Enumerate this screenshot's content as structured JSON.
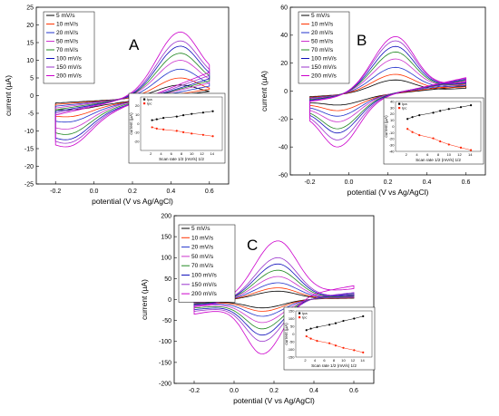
{
  "chart_data": [
    {
      "type": "line",
      "panel_label": "A",
      "xlabel": "potential (V vs Ag/AgCl)",
      "ylabel": "current (µA)",
      "xlim": [
        -0.3,
        0.7
      ],
      "ylim": [
        -25,
        25
      ],
      "xticks": [
        -0.2,
        0.0,
        0.2,
        0.4,
        0.6
      ],
      "yticks": [
        -25,
        -20,
        -15,
        -10,
        -5,
        0,
        5,
        10,
        15,
        20,
        25
      ],
      "legend_position": "top-left",
      "peak_potentials": {
        "anodic_V": 0.45,
        "cathodic_V": -0.15
      },
      "series": [
        {
          "name": "5 mV/s",
          "color": "#000000",
          "anodic_peak": 3,
          "cathodic_peak": -4,
          "end_anodic": 2,
          "start_cathodic": -4.2
        },
        {
          "name": "10 mV/s",
          "color": "#ff3300",
          "anodic_peak": 5,
          "cathodic_peak": -6,
          "end_anodic": 3,
          "start_cathodic": -5
        },
        {
          "name": "20 mV/s",
          "color": "#2233cc",
          "anodic_peak": 7.5,
          "cathodic_peak": -7.5,
          "end_anodic": 4.5,
          "start_cathodic": -6
        },
        {
          "name": "50 mV/s",
          "color": "#cc33cc",
          "anodic_peak": 10,
          "cathodic_peak": -9.5,
          "end_anodic": 6,
          "start_cathodic": -7
        },
        {
          "name": "70 mV/s",
          "color": "#228822",
          "anodic_peak": 12,
          "cathodic_peak": -11,
          "end_anodic": 7,
          "start_cathodic": -8
        },
        {
          "name": "100 mV/s",
          "color": "#1111bb",
          "anodic_peak": 14,
          "cathodic_peak": -12.5,
          "end_anodic": 8,
          "start_cathodic": -9
        },
        {
          "name": "150 mV/s",
          "color": "#9933cc",
          "anodic_peak": 15.5,
          "cathodic_peak": -13.5,
          "end_anodic": 9.5,
          "start_cathodic": -10
        },
        {
          "name": "200 mV/s",
          "color": "#cc00cc",
          "anodic_peak": 18,
          "cathodic_peak": -14.5,
          "end_anodic": 11,
          "start_cathodic": -11
        }
      ],
      "inset": {
        "type": "scatter",
        "xlabel": "Scan rate 1/2 (mV/s) 1/2",
        "ylabel": "current (µA)",
        "xlim": [
          0,
          16
        ],
        "xticks": [
          2,
          4,
          6,
          8,
          10,
          12,
          14
        ],
        "ylim": [
          -30,
          30
        ],
        "yticks": [
          -20,
          -10,
          0,
          10,
          20
        ],
        "legend": [
          "Ipa",
          "Ipc"
        ],
        "x": [
          2.24,
          3.16,
          4.47,
          7.07,
          8.37,
          10.0,
          12.25,
          14.14
        ],
        "series": [
          {
            "name": "Ipa",
            "color": "#000000",
            "values": [
              4,
              5,
              6.5,
              8,
              9.5,
              11,
              12.5,
              14
            ]
          },
          {
            "name": "Ipc",
            "color": "#ff2200",
            "values": [
              -4,
              -5.5,
              -6.5,
              -8,
              -9.5,
              -11,
              -12.5,
              -14
            ]
          }
        ]
      }
    },
    {
      "type": "line",
      "panel_label": "B",
      "xlabel": "potential (V vs Ag/AgCl)",
      "ylabel": "current (µA)",
      "xlim": [
        -0.3,
        0.7
      ],
      "ylim": [
        -60,
        60
      ],
      "xticks": [
        -0.2,
        0.0,
        0.2,
        0.4,
        0.6
      ],
      "yticks": [
        -60,
        -40,
        -20,
        0,
        20,
        40,
        60
      ],
      "legend_position": "top-left",
      "peak_potentials": {
        "anodic_V": 0.24,
        "cathodic_V": -0.06
      },
      "series": [
        {
          "name": "5 mV/s",
          "color": "#000000",
          "anodic_peak": 8,
          "cathodic_peak": -10,
          "end_anodic": 6,
          "start_cathodic": -8
        },
        {
          "name": "10 mV/s",
          "color": "#ff3300",
          "anodic_peak": 12,
          "cathodic_peak": -14,
          "end_anodic": 8,
          "start_cathodic": -9
        },
        {
          "name": "20 mV/s",
          "color": "#2233cc",
          "anodic_peak": 17,
          "cathodic_peak": -18,
          "end_anodic": 10,
          "start_cathodic": -10
        },
        {
          "name": "50 mV/s",
          "color": "#cc33cc",
          "anodic_peak": 23,
          "cathodic_peak": -22,
          "end_anodic": 12,
          "start_cathodic": -11
        },
        {
          "name": "70 mV/s",
          "color": "#228822",
          "anodic_peak": 28,
          "cathodic_peak": -27,
          "end_anodic": 13,
          "start_cathodic": -12
        },
        {
          "name": "100 mV/s",
          "color": "#1111bb",
          "anodic_peak": 32,
          "cathodic_peak": -30,
          "end_anodic": 14,
          "start_cathodic": -13
        },
        {
          "name": "150 mV/s",
          "color": "#9933cc",
          "anodic_peak": 36,
          "cathodic_peak": -35,
          "end_anodic": 15,
          "start_cathodic": -14
        },
        {
          "name": "200 mV/s",
          "color": "#cc00cc",
          "anodic_peak": 39,
          "cathodic_peak": -40,
          "end_anodic": 16,
          "start_cathodic": -15
        }
      ],
      "inset": {
        "type": "scatter",
        "xlabel": "Scan rate 1/2 (mV/s) 1/2",
        "ylabel": "current (µA)",
        "xlim": [
          0,
          16
        ],
        "xticks": [
          2,
          4,
          6,
          8,
          10,
          12,
          14
        ],
        "ylim": [
          -40,
          40
        ],
        "yticks": [
          -40,
          -30,
          -20,
          -10,
          0,
          10,
          20,
          30,
          40
        ],
        "legend": [
          "Ipa",
          "Ipc"
        ],
        "x": [
          2.24,
          3.16,
          4.47,
          7.07,
          8.37,
          10.0,
          12.25,
          14.14
        ],
        "series": [
          {
            "name": "Ipa",
            "color": "#000000",
            "values": [
              12,
              15,
              18,
              22,
              25,
              28,
              31,
              34
            ]
          },
          {
            "name": "Ipc",
            "color": "#ff2200",
            "values": [
              -4,
              -9,
              -14,
              -19,
              -24,
              -29,
              -34,
              -38
            ]
          }
        ]
      }
    },
    {
      "type": "line",
      "panel_label": "C",
      "xlabel": "potential (V vs Ag/AgCl)",
      "ylabel": "current (µA)",
      "xlim": [
        -0.3,
        0.7
      ],
      "ylim": [
        -200,
        200
      ],
      "xticks": [
        -0.2,
        0.0,
        0.2,
        0.4,
        0.6
      ],
      "yticks": [
        -200,
        -150,
        -100,
        -50,
        0,
        50,
        100,
        150,
        200
      ],
      "legend_position": "top-left",
      "peak_potentials": {
        "anodic_V": 0.22,
        "cathodic_V": 0.14
      },
      "series": [
        {
          "name": "5 mV/s",
          "color": "#000000",
          "anodic_peak": 20,
          "cathodic_peak": -20,
          "end_anodic": 8,
          "start_cathodic": -8
        },
        {
          "name": "10 mV/s",
          "color": "#ff3300",
          "anodic_peak": 28,
          "cathodic_peak": -28,
          "end_anodic": 10,
          "start_cathodic": -10
        },
        {
          "name": "20 mV/s",
          "color": "#2233cc",
          "anodic_peak": 40,
          "cathodic_peak": -40,
          "end_anodic": 13,
          "start_cathodic": -13
        },
        {
          "name": "50 mV/s",
          "color": "#cc33cc",
          "anodic_peak": 55,
          "cathodic_peak": -55,
          "end_anodic": 16,
          "start_cathodic": -16
        },
        {
          "name": "70 mV/s",
          "color": "#228822",
          "anodic_peak": 70,
          "cathodic_peak": -70,
          "end_anodic": 20,
          "start_cathodic": -20
        },
        {
          "name": "100 mV/s",
          "color": "#1111bb",
          "anodic_peak": 85,
          "cathodic_peak": -85,
          "end_anodic": 24,
          "start_cathodic": -24
        },
        {
          "name": "150 mV/s",
          "color": "#9933cc",
          "anodic_peak": 100,
          "cathodic_peak": -100,
          "end_anodic": 28,
          "start_cathodic": -28
        },
        {
          "name": "200 mV/s",
          "color": "#cc00cc",
          "anodic_peak": 140,
          "cathodic_peak": -130,
          "end_anodic": 55,
          "start_cathodic": -35
        }
      ],
      "inset": {
        "type": "scatter",
        "xlabel": "Scan rate 1/2 (mV/s) 1/2",
        "ylabel": "current (µA)",
        "xlim": [
          0,
          16
        ],
        "xticks": [
          2,
          4,
          6,
          8,
          10,
          12,
          14
        ],
        "ylim": [
          -150,
          150
        ],
        "yticks": [
          -150,
          -100,
          -50,
          0,
          50,
          100,
          150
        ],
        "legend": [
          "Ipa",
          "Ipc"
        ],
        "x": [
          2.24,
          3.16,
          4.47,
          7.07,
          8.37,
          10.0,
          12.25,
          14.14
        ],
        "series": [
          {
            "name": "Ipa",
            "color": "#000000",
            "values": [
              25,
              35,
              45,
              60,
              70,
              85,
              100,
              115
            ]
          },
          {
            "name": "Ipc",
            "color": "#ff2200",
            "values": [
              -15,
              -30,
              -45,
              -60,
              -75,
              -90,
              -105,
              -120
            ]
          }
        ]
      }
    }
  ]
}
